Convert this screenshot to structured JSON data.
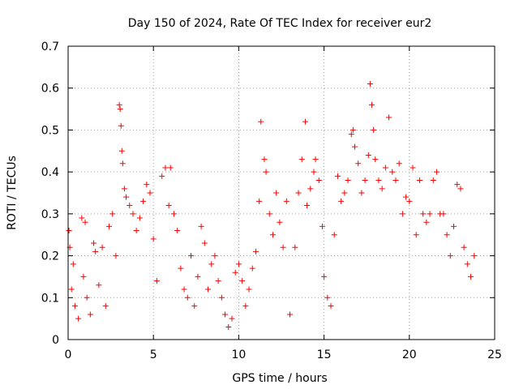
{
  "chart_data": {
    "type": "scatter",
    "title": "Day 150 of 2024, Rate Of TEC Index for receiver eur2",
    "xlabel": "GPS time / hours",
    "ylabel": "ROTI / TECUs",
    "xlim": [
      0,
      25
    ],
    "ylim": [
      0,
      0.7
    ],
    "x_ticks": [
      "0",
      "5",
      "10",
      "15",
      "20",
      "25"
    ],
    "y_ticks": [
      "0",
      "0.1",
      "0.2",
      "0.3",
      "0.4",
      "0.5",
      "0.6",
      "0.7"
    ],
    "grid": true,
    "marker": "plus",
    "marker_color": "#ff0000",
    "series": [
      {
        "values": [
          [
            0.05,
            0.26
          ],
          [
            0.1,
            0.22
          ],
          [
            0.2,
            0.12
          ],
          [
            0.3,
            0.18
          ],
          [
            0.4,
            0.08
          ],
          [
            0.6,
            0.05
          ],
          [
            0.8,
            0.29
          ],
          [
            0.9,
            0.15
          ],
          [
            1.0,
            0.28
          ],
          [
            1.1,
            0.1
          ],
          [
            1.3,
            0.06
          ],
          [
            1.5,
            0.23
          ],
          [
            1.6,
            0.21
          ],
          [
            1.8,
            0.13
          ],
          [
            2.0,
            0.22
          ],
          [
            2.2,
            0.08
          ],
          [
            2.4,
            0.27
          ],
          [
            2.6,
            0.3
          ],
          [
            2.8,
            0.2
          ],
          [
            3.0,
            0.56
          ],
          [
            3.05,
            0.55
          ],
          [
            3.1,
            0.51
          ],
          [
            3.15,
            0.45
          ],
          [
            3.2,
            0.42
          ],
          [
            3.3,
            0.36
          ],
          [
            3.4,
            0.34
          ],
          [
            3.6,
            0.32
          ],
          [
            3.8,
            0.3
          ],
          [
            4.0,
            0.26
          ],
          [
            4.2,
            0.29
          ],
          [
            4.4,
            0.33
          ],
          [
            4.6,
            0.37
          ],
          [
            4.8,
            0.35
          ],
          [
            5.0,
            0.24
          ],
          [
            5.2,
            0.14
          ],
          [
            5.5,
            0.39
          ],
          [
            5.7,
            0.41
          ],
          [
            5.9,
            0.32
          ],
          [
            6.0,
            0.41
          ],
          [
            6.2,
            0.3
          ],
          [
            6.4,
            0.26
          ],
          [
            6.6,
            0.17
          ],
          [
            6.8,
            0.12
          ],
          [
            7.0,
            0.1
          ],
          [
            7.2,
            0.2
          ],
          [
            7.4,
            0.08
          ],
          [
            7.6,
            0.15
          ],
          [
            7.8,
            0.27
          ],
          [
            8.0,
            0.23
          ],
          [
            8.2,
            0.12
          ],
          [
            8.4,
            0.18
          ],
          [
            8.6,
            0.2
          ],
          [
            8.8,
            0.14
          ],
          [
            9.0,
            0.1
          ],
          [
            9.2,
            0.06
          ],
          [
            9.4,
            0.03
          ],
          [
            9.6,
            0.05
          ],
          [
            9.8,
            0.16
          ],
          [
            10.0,
            0.18
          ],
          [
            10.2,
            0.14
          ],
          [
            10.4,
            0.08
          ],
          [
            10.6,
            0.12
          ],
          [
            10.8,
            0.17
          ],
          [
            11.0,
            0.21
          ],
          [
            11.2,
            0.33
          ],
          [
            11.3,
            0.52
          ],
          [
            11.5,
            0.43
          ],
          [
            11.6,
            0.4
          ],
          [
            11.8,
            0.3
          ],
          [
            12.0,
            0.25
          ],
          [
            12.2,
            0.35
          ],
          [
            12.4,
            0.28
          ],
          [
            12.6,
            0.22
          ],
          [
            12.8,
            0.33
          ],
          [
            13.0,
            0.06
          ],
          [
            13.3,
            0.22
          ],
          [
            13.5,
            0.35
          ],
          [
            13.7,
            0.43
          ],
          [
            13.9,
            0.52
          ],
          [
            14.0,
            0.32
          ],
          [
            14.2,
            0.36
          ],
          [
            14.4,
            0.4
          ],
          [
            14.5,
            0.43
          ],
          [
            14.7,
            0.38
          ],
          [
            14.9,
            0.27
          ],
          [
            15.0,
            0.15
          ],
          [
            15.2,
            0.1
          ],
          [
            15.4,
            0.08
          ],
          [
            15.6,
            0.25
          ],
          [
            15.8,
            0.39
          ],
          [
            16.0,
            0.33
          ],
          [
            16.2,
            0.35
          ],
          [
            16.4,
            0.38
          ],
          [
            16.6,
            0.49
          ],
          [
            16.7,
            0.5
          ],
          [
            16.8,
            0.46
          ],
          [
            17.0,
            0.42
          ],
          [
            17.2,
            0.35
          ],
          [
            17.4,
            0.38
          ],
          [
            17.6,
            0.44
          ],
          [
            17.7,
            0.61
          ],
          [
            17.8,
            0.56
          ],
          [
            17.9,
            0.5
          ],
          [
            18.0,
            0.43
          ],
          [
            18.2,
            0.38
          ],
          [
            18.4,
            0.36
          ],
          [
            18.6,
            0.41
          ],
          [
            18.8,
            0.53
          ],
          [
            19.0,
            0.4
          ],
          [
            19.2,
            0.38
          ],
          [
            19.4,
            0.42
          ],
          [
            19.6,
            0.3
          ],
          [
            19.8,
            0.34
          ],
          [
            20.0,
            0.33
          ],
          [
            20.2,
            0.41
          ],
          [
            20.4,
            0.25
          ],
          [
            20.6,
            0.38
          ],
          [
            20.8,
            0.3
          ],
          [
            21.0,
            0.28
          ],
          [
            21.2,
            0.3
          ],
          [
            21.4,
            0.38
          ],
          [
            21.6,
            0.4
          ],
          [
            21.8,
            0.3
          ],
          [
            22.0,
            0.3
          ],
          [
            22.2,
            0.25
          ],
          [
            22.4,
            0.2
          ],
          [
            22.6,
            0.27
          ],
          [
            22.8,
            0.37
          ],
          [
            23.0,
            0.36
          ],
          [
            23.2,
            0.22
          ],
          [
            23.4,
            0.18
          ],
          [
            23.6,
            0.15
          ],
          [
            23.8,
            0.2
          ]
        ]
      }
    ]
  }
}
